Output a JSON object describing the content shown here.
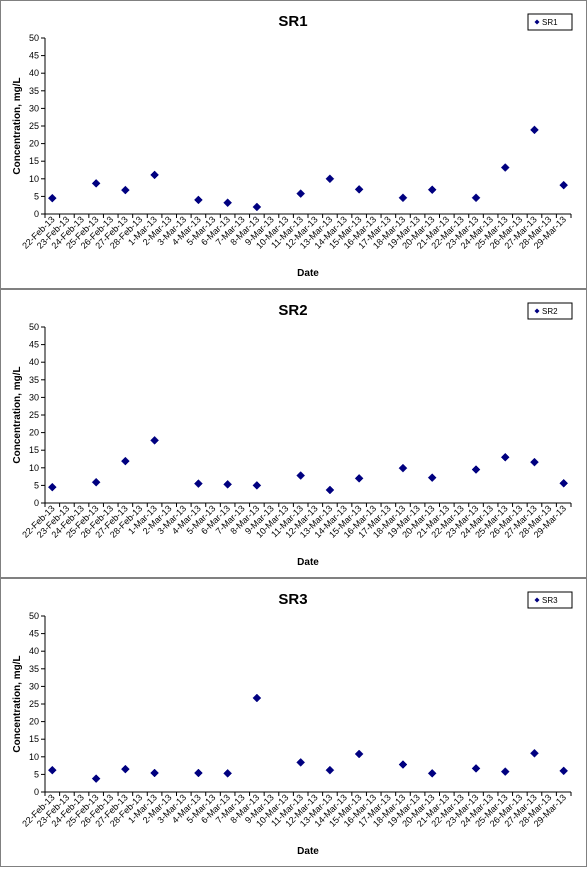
{
  "chart_data": [
    {
      "type": "scatter",
      "title": "SR1",
      "xlabel": "Date",
      "ylabel": "Concentration, mg/L",
      "ylim": [
        0,
        50
      ],
      "yticks": [
        "0",
        "5",
        "10",
        "15",
        "20",
        "25",
        "30",
        "35",
        "40",
        "45",
        "50"
      ],
      "grid": false,
      "legend_position": "top-right",
      "categories": [
        "22-Feb-13",
        "23-Feb-13",
        "24-Feb-13",
        "25-Feb-13",
        "26-Feb-13",
        "27-Feb-13",
        "28-Feb-13",
        "1-Mar-13",
        "2-Mar-13",
        "3-Mar-13",
        "4-Mar-13",
        "5-Mar-13",
        "6-Mar-13",
        "7-Mar-13",
        "8-Mar-13",
        "9-Mar-13",
        "10-Mar-13",
        "11-Mar-13",
        "12-Mar-13",
        "13-Mar-13",
        "14-Mar-13",
        "15-Mar-13",
        "16-Mar-13",
        "17-Mar-13",
        "18-Mar-13",
        "19-Mar-13",
        "20-Mar-13",
        "21-Mar-13",
        "22-Mar-13",
        "23-Mar-13",
        "24-Mar-13",
        "25-Mar-13",
        "26-Mar-13",
        "27-Mar-13",
        "28-Mar-13",
        "29-Mar-13"
      ],
      "series": [
        {
          "name": "SR1",
          "color": "#000080",
          "points": [
            {
              "x": "22-Feb-13",
              "y": 4.5
            },
            {
              "x": "25-Feb-13",
              "y": 8.7
            },
            {
              "x": "27-Feb-13",
              "y": 6.8
            },
            {
              "x": "1-Mar-13",
              "y": 11.1
            },
            {
              "x": "4-Mar-13",
              "y": 4.0
            },
            {
              "x": "6-Mar-13",
              "y": 3.2
            },
            {
              "x": "8-Mar-13",
              "y": 2.0
            },
            {
              "x": "11-Mar-13",
              "y": 5.8
            },
            {
              "x": "13-Mar-13",
              "y": 10.0
            },
            {
              "x": "15-Mar-13",
              "y": 7.0
            },
            {
              "x": "18-Mar-13",
              "y": 4.6
            },
            {
              "x": "20-Mar-13",
              "y": 6.9
            },
            {
              "x": "23-Mar-13",
              "y": 4.6
            },
            {
              "x": "25-Mar-13",
              "y": 13.2
            },
            {
              "x": "27-Mar-13",
              "y": 23.9
            },
            {
              "x": "29-Mar-13",
              "y": 8.2
            }
          ]
        }
      ]
    },
    {
      "type": "scatter",
      "title": "SR2",
      "xlabel": "Date",
      "ylabel": "Concentration, mg/L",
      "ylim": [
        0,
        50
      ],
      "yticks": [
        "0",
        "5",
        "10",
        "15",
        "20",
        "25",
        "30",
        "35",
        "40",
        "45",
        "50"
      ],
      "grid": false,
      "legend_position": "top-right",
      "categories": [
        "22-Feb-13",
        "23-Feb-13",
        "24-Feb-13",
        "25-Feb-13",
        "26-Feb-13",
        "27-Feb-13",
        "28-Feb-13",
        "1-Mar-13",
        "2-Mar-13",
        "3-Mar-13",
        "4-Mar-13",
        "5-Mar-13",
        "6-Mar-13",
        "7-Mar-13",
        "8-Mar-13",
        "9-Mar-13",
        "10-Mar-13",
        "11-Mar-13",
        "12-Mar-13",
        "13-Mar-13",
        "14-Mar-13",
        "15-Mar-13",
        "16-Mar-13",
        "17-Mar-13",
        "18-Mar-13",
        "19-Mar-13",
        "20-Mar-13",
        "21-Mar-13",
        "22-Mar-13",
        "23-Mar-13",
        "24-Mar-13",
        "25-Mar-13",
        "26-Mar-13",
        "27-Mar-13",
        "28-Mar-13",
        "29-Mar-13"
      ],
      "series": [
        {
          "name": "SR2",
          "color": "#000080",
          "points": [
            {
              "x": "22-Feb-13",
              "y": 4.5
            },
            {
              "x": "25-Feb-13",
              "y": 5.9
            },
            {
              "x": "27-Feb-13",
              "y": 11.9
            },
            {
              "x": "1-Mar-13",
              "y": 17.8
            },
            {
              "x": "4-Mar-13",
              "y": 5.5
            },
            {
              "x": "6-Mar-13",
              "y": 5.3
            },
            {
              "x": "8-Mar-13",
              "y": 5.0
            },
            {
              "x": "11-Mar-13",
              "y": 7.8
            },
            {
              "x": "13-Mar-13",
              "y": 3.7
            },
            {
              "x": "15-Mar-13",
              "y": 7.0
            },
            {
              "x": "18-Mar-13",
              "y": 9.9
            },
            {
              "x": "20-Mar-13",
              "y": 7.2
            },
            {
              "x": "23-Mar-13",
              "y": 9.5
            },
            {
              "x": "25-Mar-13",
              "y": 13.0
            },
            {
              "x": "27-Mar-13",
              "y": 11.6
            },
            {
              "x": "29-Mar-13",
              "y": 5.6
            }
          ]
        }
      ]
    },
    {
      "type": "scatter",
      "title": "SR3",
      "xlabel": "Date",
      "ylabel": "Concentration, mg/L",
      "ylim": [
        0,
        50
      ],
      "yticks": [
        "0",
        "5",
        "10",
        "15",
        "20",
        "25",
        "30",
        "35",
        "40",
        "45",
        "50"
      ],
      "grid": false,
      "legend_position": "top-right",
      "categories": [
        "22-Feb-13",
        "23-Feb-13",
        "24-Feb-13",
        "25-Feb-13",
        "26-Feb-13",
        "27-Feb-13",
        "28-Feb-13",
        "1-Mar-13",
        "2-Mar-13",
        "3-Mar-13",
        "4-Mar-13",
        "5-Mar-13",
        "6-Mar-13",
        "7-Mar-13",
        "8-Mar-13",
        "9-Mar-13",
        "10-Mar-13",
        "11-Mar-13",
        "12-Mar-13",
        "13-Mar-13",
        "14-Mar-13",
        "15-Mar-13",
        "16-Mar-13",
        "17-Mar-13",
        "18-Mar-13",
        "19-Mar-13",
        "20-Mar-13",
        "21-Mar-13",
        "22-Mar-13",
        "23-Mar-13",
        "24-Mar-13",
        "25-Mar-13",
        "26-Mar-13",
        "27-Mar-13",
        "28-Mar-13",
        "29-Mar-13"
      ],
      "series": [
        {
          "name": "SR3",
          "color": "#000080",
          "points": [
            {
              "x": "22-Feb-13",
              "y": 6.2
            },
            {
              "x": "25-Feb-13",
              "y": 3.8
            },
            {
              "x": "27-Feb-13",
              "y": 6.5
            },
            {
              "x": "1-Mar-13",
              "y": 5.4
            },
            {
              "x": "4-Mar-13",
              "y": 5.4
            },
            {
              "x": "6-Mar-13",
              "y": 5.3
            },
            {
              "x": "8-Mar-13",
              "y": 26.7
            },
            {
              "x": "11-Mar-13",
              "y": 8.4
            },
            {
              "x": "13-Mar-13",
              "y": 6.2
            },
            {
              "x": "15-Mar-13",
              "y": 10.8
            },
            {
              "x": "18-Mar-13",
              "y": 7.8
            },
            {
              "x": "20-Mar-13",
              "y": 5.3
            },
            {
              "x": "23-Mar-13",
              "y": 6.7
            },
            {
              "x": "25-Mar-13",
              "y": 5.8
            },
            {
              "x": "27-Mar-13",
              "y": 11.0
            },
            {
              "x": "29-Mar-13",
              "y": 6.0
            }
          ]
        }
      ]
    }
  ]
}
